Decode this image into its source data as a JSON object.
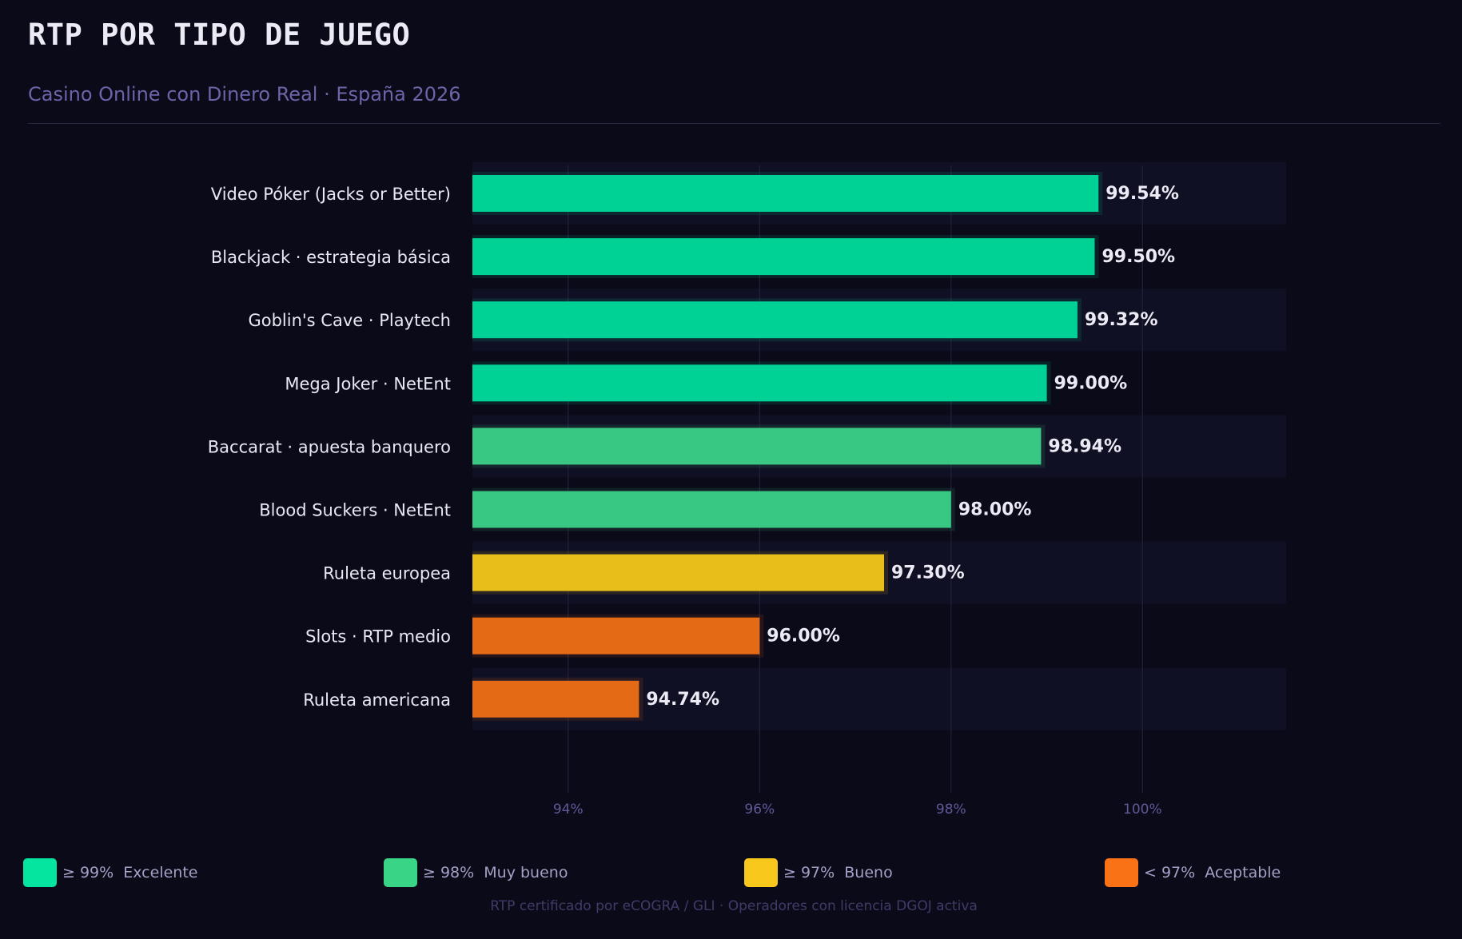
{
  "title": "RTP POR TIPO DE JUEGO",
  "subtitle": "Casino Online con Dinero Real · España 2026",
  "footnote": "RTP certificado por eCOGRA / GLI · Operadores con licencia DGOJ activa",
  "legend": [
    {
      "label": "≥ 99%  Excelente",
      "color": "#05e5a0"
    },
    {
      "label": "≥ 98%  Muy bueno",
      "color": "#3ad487"
    },
    {
      "label": "≥ 97%  Bueno",
      "color": "#f8c81c"
    },
    {
      "label": "< 97%  Aceptable",
      "color": "#f97316"
    }
  ],
  "chart_data": {
    "type": "bar",
    "orientation": "horizontal",
    "categories": [
      "Video Póker (Jacks or Better)",
      "Blackjack · estrategia básica",
      "Goblin's Cave · Playtech",
      "Mega Joker · NetEnt",
      "Baccarat · apuesta banquero",
      "Blood Suckers · NetEnt",
      "Ruleta europea",
      "Slots · RTP medio",
      "Ruleta americana"
    ],
    "values": [
      99.54,
      99.5,
      99.32,
      99.0,
      98.94,
      98.0,
      97.3,
      96.0,
      94.74
    ],
    "value_labels": [
      "99.54%",
      "99.50%",
      "99.32%",
      "99.00%",
      "98.94%",
      "98.00%",
      "97.30%",
      "96.00%",
      "94.74%"
    ],
    "bar_colors": [
      "#00d296",
      "#00d296",
      "#00d296",
      "#00d296",
      "#38c884",
      "#38c884",
      "#e8be1a",
      "#e56a16",
      "#e56a16"
    ],
    "xlim": [
      93,
      101.5
    ],
    "xticks": [
      94,
      96,
      98,
      100
    ],
    "xtick_labels": [
      "94%",
      "96%",
      "98%",
      "100%"
    ],
    "grid": "vertical",
    "legend_position": "bottom"
  }
}
